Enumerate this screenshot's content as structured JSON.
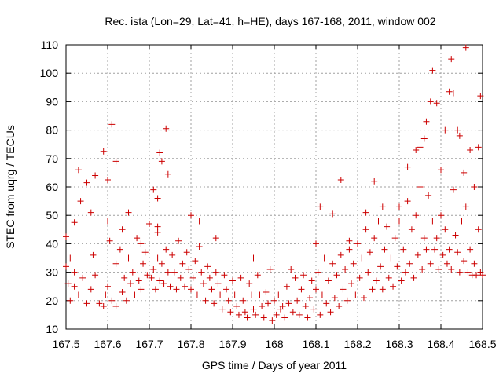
{
  "chart_data": {
    "type": "scatter",
    "title": "Rec. ista (Lon=29, Lat=41, h=HE), days 167-168, 2011, window 002",
    "xlabel": "GPS time / Days of year 2011",
    "ylabel": "STEC from uqrg / TECUs",
    "xlim": [
      167.5,
      168.5
    ],
    "ylim": [
      10,
      110
    ],
    "xticks": [
      167.5,
      167.6,
      167.7,
      167.8,
      167.9,
      168.0,
      168.1,
      168.2,
      168.3,
      168.4,
      168.5
    ],
    "xtick_labels": [
      "167.5",
      "167.6",
      "167.7",
      "167.8",
      "167.9",
      "168",
      "168.1",
      "168.2",
      "168.3",
      "168.4",
      "168.5"
    ],
    "yticks": [
      10,
      20,
      30,
      40,
      50,
      60,
      70,
      80,
      90,
      100,
      110
    ],
    "ytick_labels": [
      "10",
      "20",
      "30",
      "40",
      "50",
      "60",
      "70",
      "80",
      "90",
      "100",
      "110"
    ],
    "grid": true,
    "marker": "+",
    "color": "#cc0000",
    "series": [
      {
        "points": [
          [
            167.5,
            42.5
          ],
          [
            167.51,
            35
          ],
          [
            167.52,
            47.5
          ],
          [
            167.53,
            66
          ],
          [
            167.535,
            55
          ],
          [
            167.55,
            61.5
          ],
          [
            167.56,
            51
          ],
          [
            167.57,
            64
          ],
          [
            167.59,
            72.5
          ],
          [
            167.6,
            62.5
          ],
          [
            167.61,
            82
          ],
          [
            167.62,
            69
          ],
          [
            167.635,
            45
          ],
          [
            167.65,
            51
          ],
          [
            167.68,
            40
          ],
          [
            167.71,
            59
          ],
          [
            167.72,
            56
          ],
          [
            167.725,
            72
          ],
          [
            167.73,
            69
          ],
          [
            167.74,
            80.5
          ],
          [
            167.745,
            64.5
          ],
          [
            167.72,
            46
          ],
          [
            167.8,
            50
          ],
          [
            167.82,
            48
          ],
          [
            167.86,
            42
          ],
          [
            167.95,
            35
          ],
          [
            168.1,
            40
          ],
          [
            168.11,
            53
          ],
          [
            168.14,
            50.5
          ],
          [
            168.16,
            62.5
          ],
          [
            168.18,
            41
          ],
          [
            168.22,
            51
          ],
          [
            168.24,
            62
          ],
          [
            168.26,
            53
          ],
          [
            168.3,
            53
          ],
          [
            168.32,
            67
          ],
          [
            168.34,
            73
          ],
          [
            168.35,
            74
          ],
          [
            168.36,
            77
          ],
          [
            168.365,
            83
          ],
          [
            168.375,
            90
          ],
          [
            168.38,
            101
          ],
          [
            168.39,
            89.5
          ],
          [
            168.4,
            66
          ],
          [
            168.41,
            80
          ],
          [
            168.42,
            93.5
          ],
          [
            168.425,
            105
          ],
          [
            168.43,
            93
          ],
          [
            168.44,
            80
          ],
          [
            168.445,
            78
          ],
          [
            168.455,
            65
          ],
          [
            168.46,
            109
          ],
          [
            168.47,
            73
          ],
          [
            168.48,
            60
          ],
          [
            168.49,
            74
          ],
          [
            168.495,
            92
          ],
          [
            167.5,
            32
          ],
          [
            167.505,
            26
          ],
          [
            167.51,
            20
          ],
          [
            167.52,
            30
          ],
          [
            167.52,
            25
          ],
          [
            167.53,
            22
          ],
          [
            167.54,
            28
          ],
          [
            167.55,
            19
          ],
          [
            167.56,
            24
          ],
          [
            167.565,
            36
          ],
          [
            167.57,
            29
          ],
          [
            167.58,
            19
          ],
          [
            167.59,
            18
          ],
          [
            167.595,
            22
          ],
          [
            167.6,
            48
          ],
          [
            167.6,
            25
          ],
          [
            167.605,
            41
          ],
          [
            167.61,
            20
          ],
          [
            167.62,
            33
          ],
          [
            167.62,
            18
          ],
          [
            167.63,
            38
          ],
          [
            167.635,
            23
          ],
          [
            167.64,
            28
          ],
          [
            167.645,
            20
          ],
          [
            167.65,
            35
          ],
          [
            167.655,
            26
          ],
          [
            167.66,
            30
          ],
          [
            167.665,
            22
          ],
          [
            167.67,
            42
          ],
          [
            167.675,
            27
          ],
          [
            167.68,
            24
          ],
          [
            167.685,
            33
          ],
          [
            167.69,
            37
          ],
          [
            167.695,
            29
          ],
          [
            167.7,
            47
          ],
          [
            167.705,
            28
          ],
          [
            167.71,
            31
          ],
          [
            167.715,
            24
          ],
          [
            167.72,
            44
          ],
          [
            167.72,
            35
          ],
          [
            167.725,
            27
          ],
          [
            167.73,
            33
          ],
          [
            167.735,
            26
          ],
          [
            167.74,
            38
          ],
          [
            167.745,
            30
          ],
          [
            167.75,
            25
          ],
          [
            167.755,
            36
          ],
          [
            167.76,
            30
          ],
          [
            167.765,
            24
          ],
          [
            167.77,
            41
          ],
          [
            167.775,
            28
          ],
          [
            167.78,
            33
          ],
          [
            167.785,
            25
          ],
          [
            167.79,
            37
          ],
          [
            167.795,
            31
          ],
          [
            167.8,
            24
          ],
          [
            167.805,
            28
          ],
          [
            167.81,
            34
          ],
          [
            167.815,
            22
          ],
          [
            167.82,
            39
          ],
          [
            167.825,
            30
          ],
          [
            167.83,
            26
          ],
          [
            167.835,
            20
          ],
          [
            167.84,
            32
          ],
          [
            167.845,
            28
          ],
          [
            167.85,
            24
          ],
          [
            167.855,
            19
          ],
          [
            167.86,
            30
          ],
          [
            167.865,
            26
          ],
          [
            167.87,
            22
          ],
          [
            167.875,
            17
          ],
          [
            167.88,
            29
          ],
          [
            167.885,
            24
          ],
          [
            167.89,
            20
          ],
          [
            167.895,
            16
          ],
          [
            167.9,
            27
          ],
          [
            167.905,
            22
          ],
          [
            167.91,
            18
          ],
          [
            167.915,
            15
          ],
          [
            167.92,
            28
          ],
          [
            167.925,
            20
          ],
          [
            167.93,
            16
          ],
          [
            167.935,
            14
          ],
          [
            167.94,
            26
          ],
          [
            167.945,
            22
          ],
          [
            167.95,
            17
          ],
          [
            167.955,
            15
          ],
          [
            167.96,
            29
          ],
          [
            167.965,
            22
          ],
          [
            167.97,
            18
          ],
          [
            167.975,
            14
          ],
          [
            167.98,
            23
          ],
          [
            167.985,
            19
          ],
          [
            167.99,
            31
          ],
          [
            167.995,
            13
          ],
          [
            168.0,
            20
          ],
          [
            168.005,
            15
          ],
          [
            168.01,
            22
          ],
          [
            168.015,
            17
          ],
          [
            168.02,
            18
          ],
          [
            168.025,
            14
          ],
          [
            168.03,
            25
          ],
          [
            168.035,
            19
          ],
          [
            168.04,
            31
          ],
          [
            168.045,
            16
          ],
          [
            168.05,
            28
          ],
          [
            168.055,
            20
          ],
          [
            168.06,
            15
          ],
          [
            168.065,
            24
          ],
          [
            168.07,
            29
          ],
          [
            168.075,
            18
          ],
          [
            168.08,
            14
          ],
          [
            168.085,
            21
          ],
          [
            168.09,
            27
          ],
          [
            168.095,
            17
          ],
          [
            168.1,
            24
          ],
          [
            168.105,
            30
          ],
          [
            168.11,
            15
          ],
          [
            168.115,
            22
          ],
          [
            168.12,
            35
          ],
          [
            168.125,
            19
          ],
          [
            168.13,
            27
          ],
          [
            168.135,
            16
          ],
          [
            168.14,
            33
          ],
          [
            168.145,
            21
          ],
          [
            168.15,
            29
          ],
          [
            168.155,
            18
          ],
          [
            168.16,
            36
          ],
          [
            168.165,
            24
          ],
          [
            168.17,
            31
          ],
          [
            168.175,
            20
          ],
          [
            168.18,
            38
          ],
          [
            168.185,
            26
          ],
          [
            168.19,
            33
          ],
          [
            168.195,
            22
          ],
          [
            168.2,
            40
          ],
          [
            168.205,
            28
          ],
          [
            168.21,
            35
          ],
          [
            168.215,
            21
          ],
          [
            168.22,
            45
          ],
          [
            168.225,
            30
          ],
          [
            168.23,
            37
          ],
          [
            168.235,
            24
          ],
          [
            168.24,
            42
          ],
          [
            168.245,
            27
          ],
          [
            168.25,
            48
          ],
          [
            168.255,
            32
          ],
          [
            168.26,
            24
          ],
          [
            168.265,
            38
          ],
          [
            168.27,
            46
          ],
          [
            168.275,
            28
          ],
          [
            168.28,
            35
          ],
          [
            168.285,
            25
          ],
          [
            168.29,
            42
          ],
          [
            168.295,
            32
          ],
          [
            168.3,
            48
          ],
          [
            168.305,
            27
          ],
          [
            168.31,
            38
          ],
          [
            168.315,
            30
          ],
          [
            168.32,
            55
          ],
          [
            168.325,
            33
          ],
          [
            168.33,
            45
          ],
          [
            168.335,
            28
          ],
          [
            168.34,
            50
          ],
          [
            168.345,
            36
          ],
          [
            168.35,
            60
          ],
          [
            168.355,
            31
          ],
          [
            168.36,
            42
          ],
          [
            168.365,
            38
          ],
          [
            168.37,
            57
          ],
          [
            168.375,
            33
          ],
          [
            168.38,
            48
          ],
          [
            168.385,
            38
          ],
          [
            168.39,
            42
          ],
          [
            168.395,
            31
          ],
          [
            168.4,
            50
          ],
          [
            168.405,
            36
          ],
          [
            168.41,
            45
          ],
          [
            168.415,
            33
          ],
          [
            168.42,
            38
          ],
          [
            168.425,
            31
          ],
          [
            168.43,
            59
          ],
          [
            168.435,
            43
          ],
          [
            168.44,
            37
          ],
          [
            168.445,
            30
          ],
          [
            168.45,
            48
          ],
          [
            168.455,
            34
          ],
          [
            168.46,
            53
          ],
          [
            168.465,
            30
          ],
          [
            168.47,
            38
          ],
          [
            168.475,
            29
          ],
          [
            168.48,
            33
          ],
          [
            168.485,
            29
          ],
          [
            168.49,
            45
          ],
          [
            168.495,
            30
          ],
          [
            168.5,
            29
          ]
        ]
      }
    ]
  }
}
